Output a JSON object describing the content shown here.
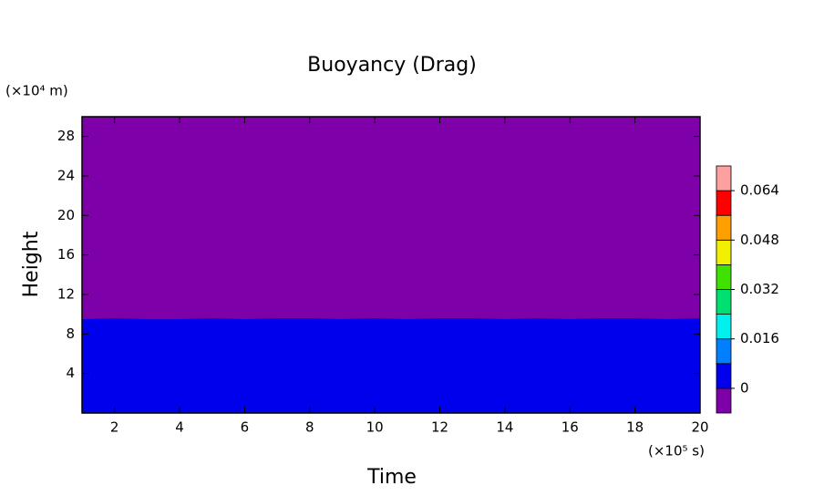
{
  "chart_data": {
    "type": "contour",
    "title": "Buoyancy (Drag)",
    "xlabel": "Time",
    "ylabel": "Height",
    "x_unit": "(×10⁵ s)",
    "y_unit": "(×10⁴ m)",
    "xlim": [
      1,
      20
    ],
    "ylim": [
      0,
      30
    ],
    "xticks": [
      2,
      4,
      6,
      8,
      10,
      12,
      14,
      16,
      18,
      20
    ],
    "yticks": [
      4,
      8,
      12,
      16,
      20,
      24,
      28
    ],
    "background_color": "#7e00a8",
    "regions": [
      {
        "color": "#0000ec",
        "x": [
          1,
          2,
          3,
          4,
          5,
          6,
          7,
          8,
          9,
          10,
          11,
          12,
          13,
          14,
          15,
          16,
          17,
          18,
          19,
          20
        ],
        "values": [
          9.5,
          9.6,
          9.5,
          9.5,
          9.6,
          9.5,
          9.6,
          9.6,
          9.5,
          9.6,
          9.5,
          9.6,
          9.6,
          9.5,
          9.6,
          9.5,
          9.6,
          9.6,
          9.5,
          9.6
        ]
      }
    ],
    "levels": [
      0,
      0.008,
      0.016,
      0.024,
      0.032,
      0.04,
      0.048,
      0.056,
      0.064
    ],
    "colors": [
      "#7e00a8",
      "#0000ec",
      "#0080ff",
      "#00f0f0",
      "#00e070",
      "#40e000",
      "#f0f000",
      "#ffa000",
      "#ff0000",
      "#ffa0a0"
    ],
    "colorbar_ticks": [
      0,
      0.016,
      0.032,
      0.048,
      0.064
    ]
  }
}
